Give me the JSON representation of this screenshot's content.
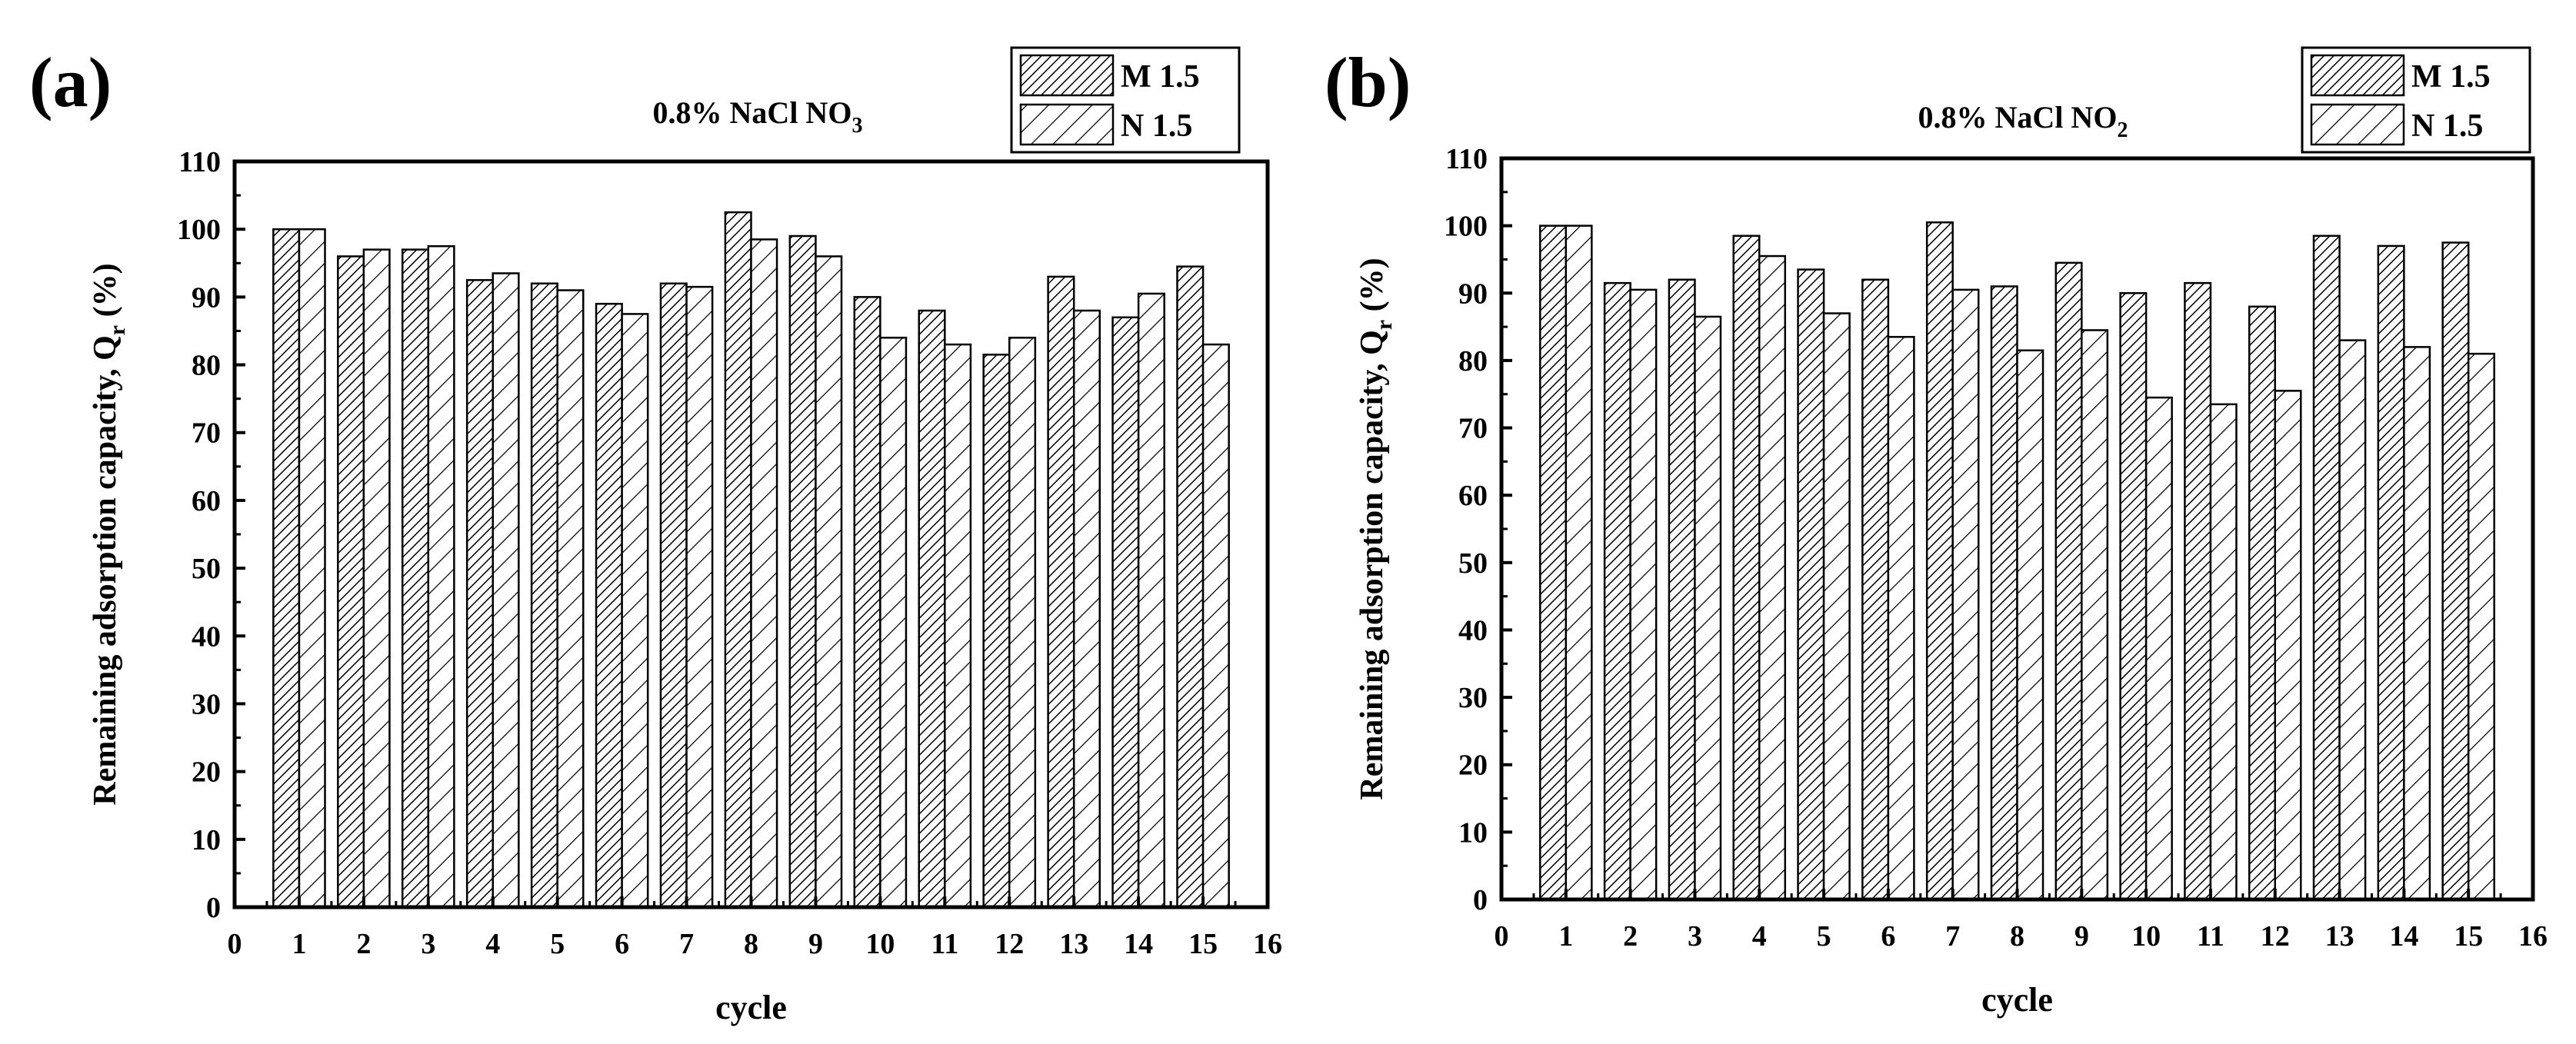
{
  "chart_data": [
    {
      "panel_label": "(a)",
      "type": "bar",
      "title_main": "0.8% NaCl NO",
      "title_sub": "3",
      "xlabel": "cycle",
      "ylabel_main": "Remaining adsorption capacity, Q",
      "ylabel_sub": "r",
      "ylabel_end": " (%)",
      "xlim": [
        0,
        16
      ],
      "ylim": [
        0,
        110
      ],
      "x_ticks": [
        "0",
        "1",
        "2",
        "3",
        "4",
        "5",
        "6",
        "7",
        "8",
        "9",
        "10",
        "11",
        "12",
        "13",
        "14",
        "15",
        "16"
      ],
      "y_ticks": [
        "0",
        "10",
        "20",
        "30",
        "40",
        "50",
        "60",
        "70",
        "80",
        "90",
        "100",
        "110"
      ],
      "categories": [
        1,
        2,
        3,
        4,
        5,
        6,
        7,
        8,
        9,
        10,
        11,
        12,
        13,
        14,
        15
      ],
      "series": [
        {
          "name": "M 1.5",
          "pattern": "dense",
          "values": [
            100,
            96,
            97,
            92.5,
            92,
            89,
            92,
            102.5,
            99,
            90,
            88,
            81.5,
            93,
            87,
            94.5
          ]
        },
        {
          "name": "N 1.5",
          "pattern": "sparse",
          "values": [
            100,
            97,
            97.5,
            93.5,
            91,
            87.5,
            91.5,
            98.5,
            96,
            84,
            83,
            84,
            88,
            90.5,
            83
          ]
        }
      ],
      "legend_position": "top-right"
    },
    {
      "panel_label": "(b)",
      "type": "bar",
      "title_main": "0.8% NaCl NO",
      "title_sub": "2",
      "xlabel": "cycle",
      "ylabel_main": "Remaining adsorption capacity, Q",
      "ylabel_sub": "r",
      "ylabel_end": " (%)",
      "xlim": [
        0,
        16
      ],
      "ylim": [
        0,
        110
      ],
      "x_ticks": [
        "0",
        "1",
        "2",
        "3",
        "4",
        "5",
        "6",
        "7",
        "8",
        "9",
        "10",
        "11",
        "12",
        "13",
        "14",
        "15",
        "16"
      ],
      "y_ticks": [
        "0",
        "10",
        "20",
        "30",
        "40",
        "50",
        "60",
        "70",
        "80",
        "90",
        "100",
        "110"
      ],
      "categories": [
        1,
        2,
        3,
        4,
        5,
        6,
        7,
        8,
        9,
        10,
        11,
        12,
        13,
        14,
        15
      ],
      "series": [
        {
          "name": "M 1.5",
          "pattern": "dense",
          "values": [
            100,
            91.5,
            92,
            98.5,
            93.5,
            92,
            100.5,
            91,
            94.5,
            90,
            91.5,
            88,
            98.5,
            97,
            97.5
          ]
        },
        {
          "name": "N 1.5",
          "pattern": "sparse",
          "values": [
            100,
            90.5,
            86.5,
            95.5,
            87,
            83.5,
            90.5,
            81.5,
            84.5,
            74.5,
            73.5,
            75.5,
            83,
            82,
            81
          ]
        }
      ],
      "legend_position": "top-right"
    }
  ]
}
